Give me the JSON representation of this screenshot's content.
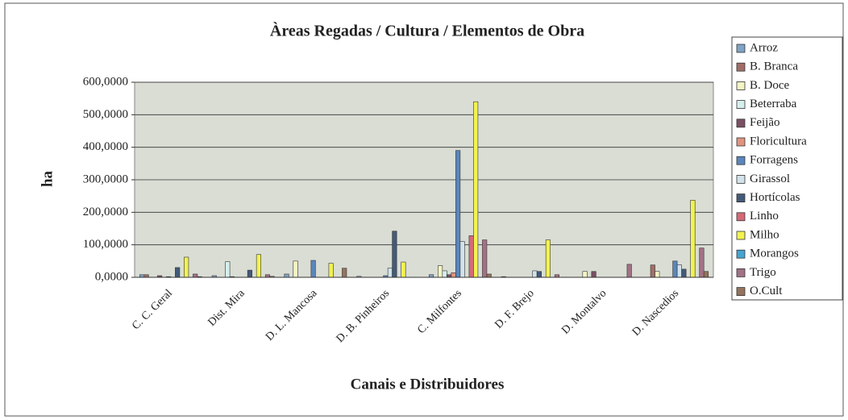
{
  "chart_data": {
    "type": "bar",
    "title": "Àreas Regadas / Cultura / Elementos de Obra",
    "x_label": "Canais e Distribuidores",
    "y_label": "ha",
    "categories": [
      "C. C. Geral",
      "Dist. Mira",
      "D. L. Mancosa",
      "D. B. Pinheiros",
      "C. Milfontes",
      "D. F. Brejo",
      "D. Montalvo",
      "D. Nascedios"
    ],
    "series": [
      {
        "name": "Arroz",
        "color": "#7fa3c4",
        "values": [
          8,
          5,
          10,
          3,
          8,
          2,
          0,
          0
        ]
      },
      {
        "name": "B. Branca",
        "color": "#a06e66",
        "values": [
          8,
          0,
          0,
          0,
          0,
          0,
          0,
          38
        ]
      },
      {
        "name": "B. Doce",
        "color": "#f4f4c4",
        "values": [
          0,
          0,
          50,
          0,
          36,
          0,
          18,
          18
        ]
      },
      {
        "name": "Beterraba",
        "color": "#d6eeee",
        "values": [
          0,
          48,
          0,
          0,
          20,
          0,
          0,
          0
        ]
      },
      {
        "name": "Feijão",
        "color": "#7a5064",
        "values": [
          5,
          2,
          0,
          0,
          8,
          0,
          18,
          0
        ]
      },
      {
        "name": "Floricultura",
        "color": "#e09480",
        "values": [
          0,
          0,
          0,
          0,
          14,
          0,
          0,
          0
        ]
      },
      {
        "name": "Forragens",
        "color": "#5a86bc",
        "values": [
          2,
          0,
          52,
          5,
          390,
          0,
          0,
          50
        ]
      },
      {
        "name": "Girassol",
        "color": "#d2e2ea",
        "values": [
          0,
          0,
          0,
          28,
          110,
          20,
          0,
          38
        ]
      },
      {
        "name": "Hortícolas",
        "color": "#435a78",
        "values": [
          30,
          22,
          0,
          142,
          0,
          18,
          0,
          25
        ]
      },
      {
        "name": "Linho",
        "color": "#d46a78",
        "values": [
          0,
          0,
          0,
          0,
          128,
          0,
          0,
          0
        ]
      },
      {
        "name": "Milho",
        "color": "#f2f250",
        "values": [
          62,
          70,
          43,
          47,
          540,
          115,
          0,
          237
        ]
      },
      {
        "name": "Morangos",
        "color": "#46a4d2",
        "values": [
          0,
          0,
          0,
          0,
          0,
          0,
          0,
          0
        ]
      },
      {
        "name": "Trigo",
        "color": "#a27286",
        "values": [
          10,
          8,
          0,
          0,
          115,
          8,
          40,
          90
        ]
      },
      {
        "name": "O.Cult",
        "color": "#94745e",
        "values": [
          2,
          3,
          28,
          0,
          10,
          0,
          0,
          18
        ]
      }
    ],
    "ylim": [
      0,
      600
    ],
    "yticks": [
      {
        "value": 0,
        "label": "0,0000"
      },
      {
        "value": 100,
        "label": "100,0000"
      },
      {
        "value": 200,
        "label": "200,0000"
      },
      {
        "value": 300,
        "label": "300,0000"
      },
      {
        "value": 400,
        "label": "400,0000"
      },
      {
        "value": 500,
        "label": "500,0000"
      },
      {
        "value": 600,
        "label": "600,0000"
      }
    ],
    "grid": true,
    "legend": "right"
  }
}
